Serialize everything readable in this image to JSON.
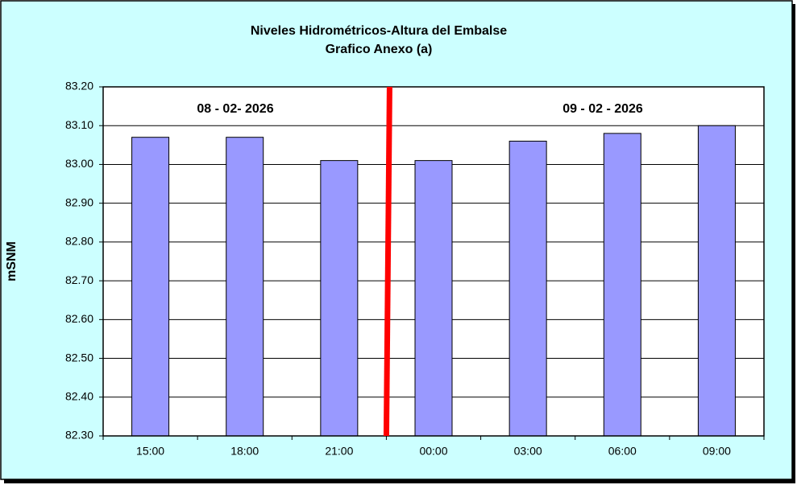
{
  "chart_data": {
    "type": "bar",
    "title": "Niveles Hidrométricos-Altura del Embalse",
    "subtitle": "Grafico Anexo (a)",
    "y_label": "mSNM",
    "annotations": [
      "08 - 02- 2026",
      "09 - 02 - 2026"
    ],
    "categories": [
      "15:00",
      "18:00",
      "21:00",
      "00:00",
      "03:00",
      "06:00",
      "09:00"
    ],
    "values": [
      83.07,
      83.07,
      83.01,
      83.01,
      83.06,
      83.08,
      83.1
    ],
    "color": "#9999ff",
    "ylim": [
      82.3,
      83.2
    ],
    "yticks": [
      {
        "value": 82.3,
        "label": "82.30"
      },
      {
        "value": 82.4,
        "label": "82.40"
      },
      {
        "value": 82.5,
        "label": "82.50"
      },
      {
        "value": 82.6,
        "label": "82.60"
      },
      {
        "value": 82.7,
        "label": "82.70"
      },
      {
        "value": 82.8,
        "label": "82.80"
      },
      {
        "value": 82.9,
        "label": "82.90"
      },
      {
        "value": 83.0,
        "label": "83.00"
      },
      {
        "value": 83.1,
        "label": "83.10"
      },
      {
        "value": 83.2,
        "label": "83.20"
      }
    ],
    "grid": true
  }
}
